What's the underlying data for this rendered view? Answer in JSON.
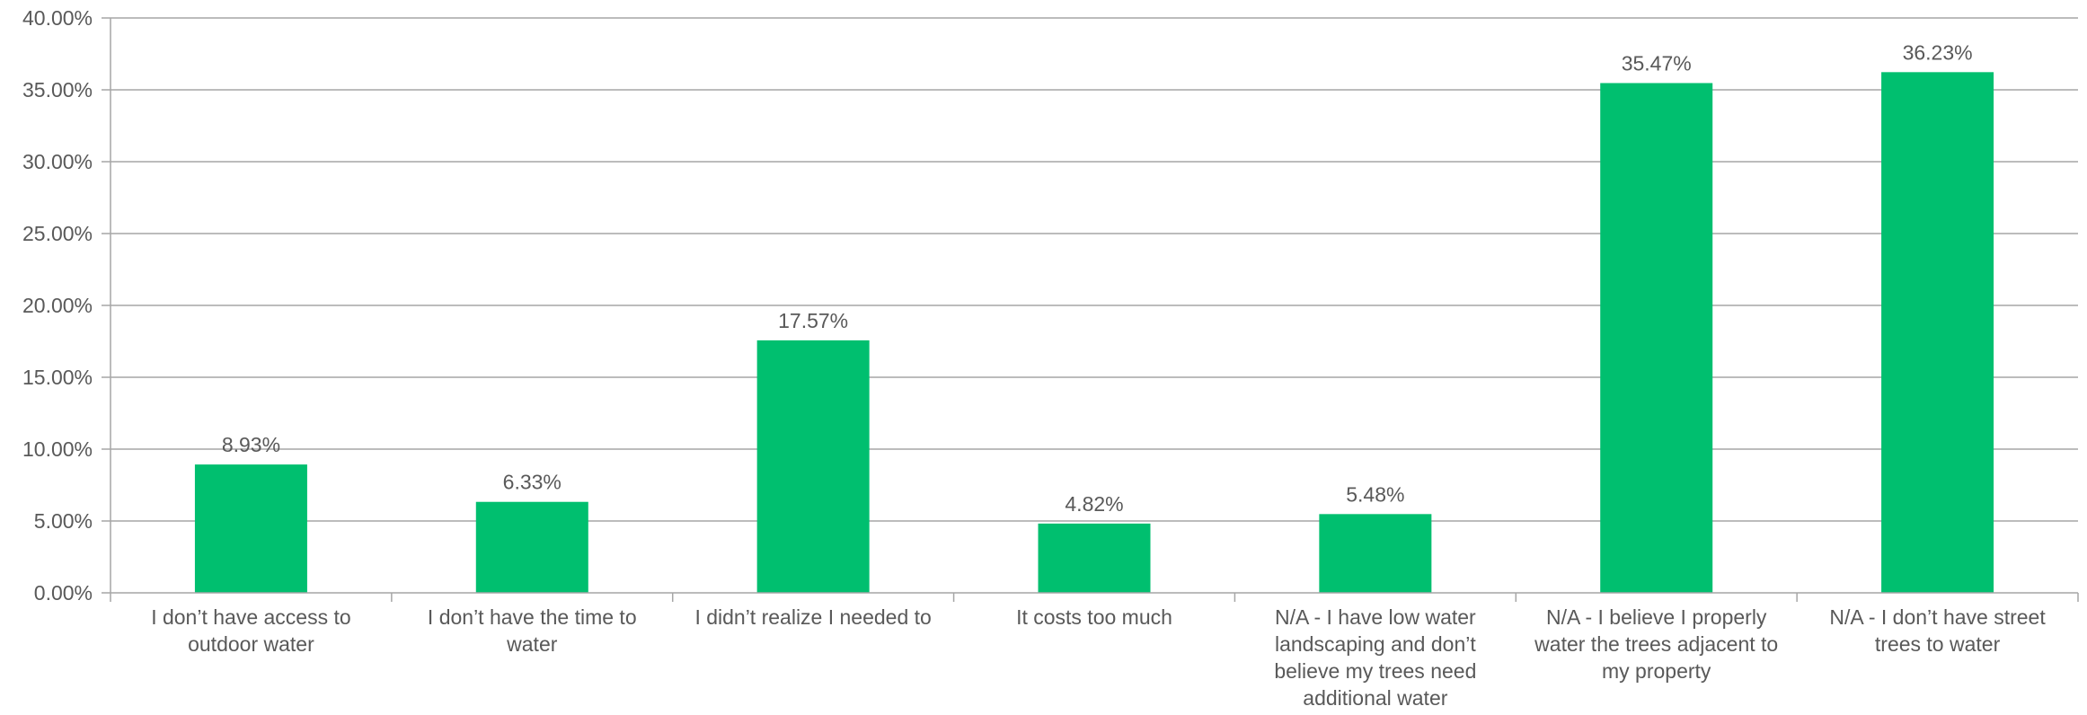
{
  "chart_data": {
    "type": "bar",
    "title": "",
    "xlabel": "",
    "ylabel": "",
    "ylim": [
      0,
      40
    ],
    "y_ticks": [
      "0.00%",
      "5.00%",
      "10.00%",
      "15.00%",
      "20.00%",
      "25.00%",
      "30.00%",
      "35.00%",
      "40.00%"
    ],
    "y_tick_values": [
      0,
      5,
      10,
      15,
      20,
      25,
      30,
      35,
      40
    ],
    "grid": true,
    "legend": "none",
    "bar_color": "#00bf6f",
    "categories": [
      [
        "I don’t have access to",
        "outdoor water"
      ],
      [
        "I don’t have the time to",
        "water"
      ],
      [
        "I didn’t realize I needed to"
      ],
      [
        "It costs too much"
      ],
      [
        "N/A - I have low water",
        "landscaping and don’t",
        "believe my trees need",
        "additional water"
      ],
      [
        "N/A - I believe I properly",
        "water the trees adjacent to",
        "my property"
      ],
      [
        "N/A - I don’t have street",
        "trees to water"
      ]
    ],
    "values": [
      8.93,
      6.33,
      17.57,
      4.82,
      5.48,
      35.47,
      36.23
    ],
    "data_labels": [
      "8.93%",
      "6.33%",
      "17.57%",
      "4.82%",
      "5.48%",
      "35.47%",
      "36.23%"
    ]
  }
}
